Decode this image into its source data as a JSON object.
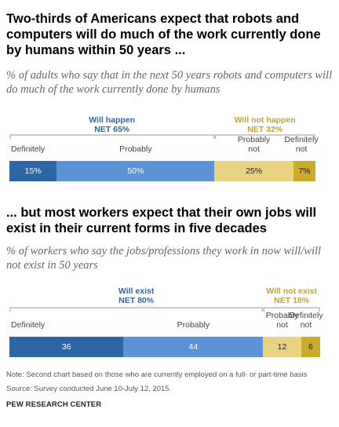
{
  "colors": {
    "definitely_yes": "#2d66a4",
    "probably_yes": "#5b93d5",
    "probably_no": "#e8d383",
    "definitely_no": "#ccaa2b",
    "net_yes": "#2d66a4",
    "net_no": "#c4a22a",
    "bracket": "#999999"
  },
  "chart_data": [
    {
      "type": "bar",
      "orientation": "horizontal-stacked",
      "title": "Two-thirds of Americans expect that robots and computers will do much of the work currently done by humans within 50 years ...",
      "subtitle": "% of adults who say that in the next 50 years robots and computers will do much of the work currently done by humans",
      "segments": [
        {
          "name": "Definitely",
          "value": 15,
          "label": "15%"
        },
        {
          "name": "Probably",
          "value": 50,
          "label": "50%"
        },
        {
          "name": "Probably not",
          "value": 25,
          "label": "25%"
        },
        {
          "name": "Definitely not",
          "value": 7,
          "label": "7%"
        }
      ],
      "nets": [
        {
          "label": "Will happen",
          "net": "NET 65%"
        },
        {
          "label": "Will not happen",
          "net": "NET 32%"
        }
      ]
    },
    {
      "type": "bar",
      "orientation": "horizontal-stacked",
      "title": "... but most workers expect that their own jobs will exist in their current forms in five decades",
      "subtitle": "% of workers who say the jobs/professions they work in now will/will not exist in 50 years",
      "segments": [
        {
          "name": "Definitely",
          "value": 36,
          "label": "36"
        },
        {
          "name": "Probably",
          "value": 44,
          "label": "44"
        },
        {
          "name": "Probably not",
          "value": 12,
          "label": "12"
        },
        {
          "name": "Definitely not",
          "value": 6,
          "label": "6"
        }
      ],
      "nets": [
        {
          "label": "Will exist",
          "net": "NET 80%"
        },
        {
          "label": "Will not exist",
          "net": "NET 18%"
        }
      ]
    }
  ],
  "footer": {
    "note": "Note: Second chart based on those who are currently employed on a full- or part-time basis",
    "source": "Source: Survey conducted June 10-July 12, 2015.",
    "brand": "PEW RESEARCH CENTER"
  }
}
